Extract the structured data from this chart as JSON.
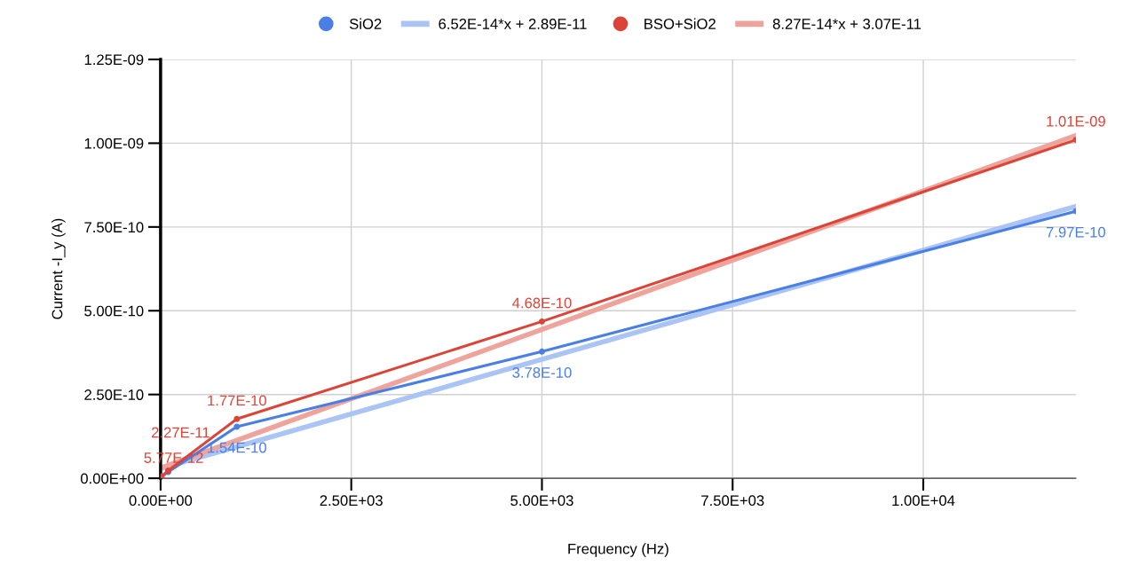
{
  "chart_data": {
    "type": "line",
    "xlabel": "Frequency (Hz)",
    "ylabel": "Current -I_y (A)",
    "xlim": [
      0,
      12000
    ],
    "ylim": [
      0,
      1.25e-09
    ],
    "xticks": [
      {
        "value": 0,
        "label": "0.00E+00"
      },
      {
        "value": 2500,
        "label": "2.50E+03"
      },
      {
        "value": 5000,
        "label": "5.00E+03"
      },
      {
        "value": 7500,
        "label": "7.50E+03"
      },
      {
        "value": 10000,
        "label": "1.00E+04"
      }
    ],
    "yticks": [
      {
        "value": 0,
        "label": "0.00E+00"
      },
      {
        "value": 2.5e-10,
        "label": "2.50E-10"
      },
      {
        "value": 5e-10,
        "label": "5.00E-10"
      },
      {
        "value": 7.5e-10,
        "label": "7.50E-10"
      },
      {
        "value": 1e-09,
        "label": "1.00E-09"
      },
      {
        "value": 1.25e-09,
        "label": "1.25E-09"
      }
    ],
    "grid": true,
    "legend": "top",
    "marker": "circle",
    "series": [
      {
        "name": "SiO2",
        "color": "#4a7fe6",
        "x": [
          10,
          100,
          1000,
          5000,
          12000
        ],
        "values": [
          4e-12,
          1.9e-11,
          1.54e-10,
          3.78e-10,
          7.97e-10
        ],
        "value_labels": [
          null,
          null,
          "1.54E-10",
          "3.78E-10",
          "7.97E-10"
        ]
      },
      {
        "name": "6.52E-14*x + 2.89E-11",
        "color": "#a9c4f5",
        "marker": "none",
        "x": [
          0,
          12000
        ],
        "values": [
          2.89e-11,
          8.113e-10
        ]
      },
      {
        "name": "BSO+SiO2",
        "color": "#db4437",
        "x": [
          10,
          100,
          1000,
          5000,
          12000
        ],
        "values": [
          5.77e-12,
          2.27e-11,
          1.77e-10,
          4.68e-10,
          1.01e-09
        ],
        "value_labels": [
          "5.77E-12",
          "2.27E-11",
          "1.77E-10",
          "4.68E-10",
          "1.01E-09"
        ]
      },
      {
        "name": "8.27E-14*x + 3.07E-11",
        "color": "#eea39b",
        "marker": "none",
        "x": [
          0,
          12000
        ],
        "values": [
          3.07e-11,
          1.0231e-09
        ]
      }
    ]
  }
}
